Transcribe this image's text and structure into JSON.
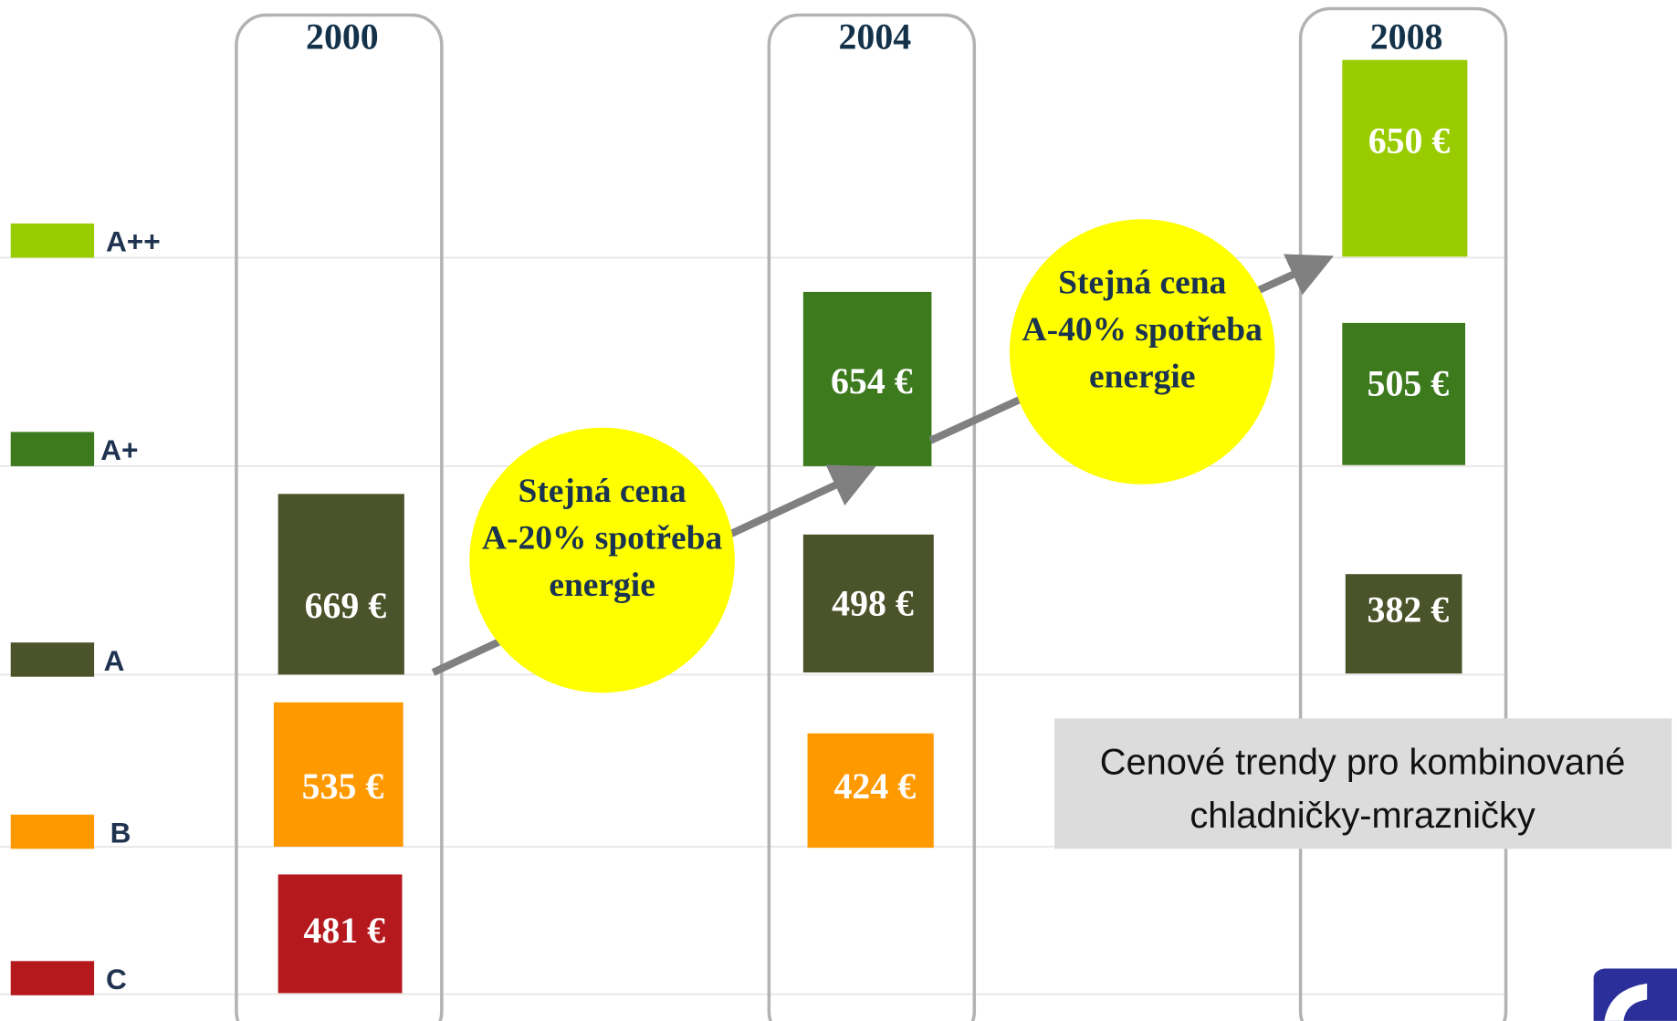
{
  "legend": [
    {
      "label": "A++",
      "color": "#99cc00"
    },
    {
      "label": "A+",
      "color": "#3d7a1e"
    },
    {
      "label": "A",
      "color": "#4a5329"
    },
    {
      "label": "B",
      "color": "#ff9900"
    },
    {
      "label": "C",
      "color": "#b5191e"
    }
  ],
  "columns": [
    {
      "year": "2000",
      "items": [
        {
          "label": "669 €",
          "color": "#4a5329"
        },
        {
          "label": "535 €",
          "color": "#ff9900"
        },
        {
          "label": "481 €",
          "color": "#b5191e"
        }
      ]
    },
    {
      "year": "2004",
      "items": [
        {
          "label": "654 €",
          "color": "#3d7a1e"
        },
        {
          "label": "498 €",
          "color": "#4a5329"
        },
        {
          "label": "424 €",
          "color": "#ff9900"
        }
      ]
    },
    {
      "year": "2008",
      "items": [
        {
          "label": "650 €",
          "color": "#99cc00"
        },
        {
          "label": "505 €",
          "color": "#3d7a1e"
        },
        {
          "label": "382 €",
          "color": "#4a5329"
        }
      ]
    }
  ],
  "bubbles": [
    {
      "lines": [
        "Stejná cena",
        "A-20% spotřeba",
        "energie"
      ]
    },
    {
      "lines": [
        "Stejná cena",
        "A-40% spotřeba",
        "energie"
      ]
    }
  ],
  "note": {
    "lines": [
      "Cenové trendy pro kombinované",
      "chladničky-mrazničky"
    ]
  }
}
